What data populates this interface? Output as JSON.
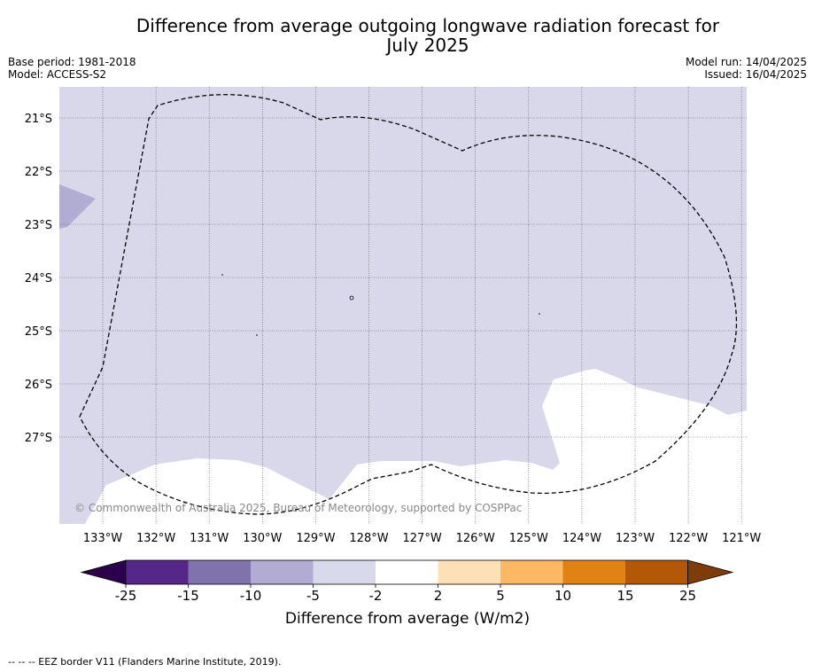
{
  "title": {
    "line1": "Difference from average outgoing longwave radiation forecast for",
    "line2": "July 2025"
  },
  "meta_left": {
    "base_period": "Base period: 1981-2018",
    "model": "Model: ACCESS-S2"
  },
  "meta_right": {
    "model_run": "Model run: 14/04/2025",
    "issued": "Issued: 16/04/2025"
  },
  "map": {
    "lat_labels": [
      "21°S",
      "22°S",
      "23°S",
      "24°S",
      "25°S",
      "26°S",
      "27°S"
    ],
    "lon_labels": [
      "133°W",
      "132°W",
      "131°W",
      "130°W",
      "129°W",
      "128°W",
      "127°W",
      "126°W",
      "125°W",
      "124°W",
      "123°W",
      "122°W",
      "121°W"
    ],
    "copyright": "© Commonwealth of Australia 2025, Bureau of Meteorology, supported by COSPPac",
    "colors": {
      "band_minus5_minus2": "#d8d8ea",
      "band_minus10_minus5": "#b0acd4",
      "neutral": "#ffffff",
      "eez_border": "#000000"
    }
  },
  "colorbar": {
    "ticks": [
      "-25",
      "-15",
      "-10",
      "-5",
      "-2",
      "2",
      "5",
      "10",
      "15",
      "25"
    ],
    "colors": [
      "#2d004b",
      "#542788",
      "#8073ac",
      "#b2abd2",
      "#d8daeb",
      "#ffffff",
      "#fee0b6",
      "#fdb863",
      "#e08214",
      "#b35806",
      "#7f3b08"
    ],
    "label": "Difference from average (W/m2)"
  },
  "footer": {
    "text": "--  --  -- EEZ border V11 (Flanders Marine Institute, 2019)."
  }
}
